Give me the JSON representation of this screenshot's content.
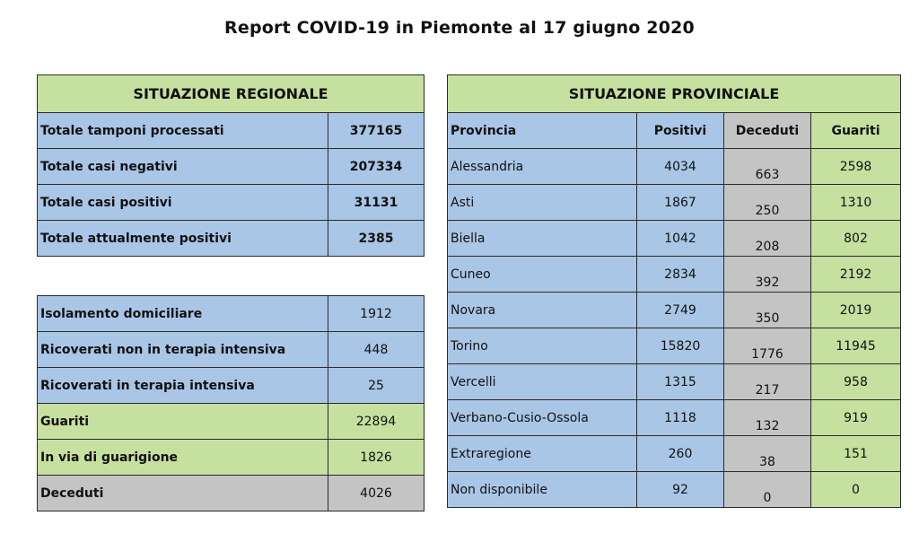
{
  "title": "Report COVID-19 in Piemonte al 17 giugno 2020",
  "regional": {
    "header": "SITUAZIONE REGIONALE",
    "rows": [
      {
        "label": "Totale tamponi processati",
        "value": "377165"
      },
      {
        "label": "Totale casi negativi",
        "value": "207334"
      },
      {
        "label": "Totale casi positivi",
        "value": "31131"
      },
      {
        "label": "Totale attualmente positivi",
        "value": "2385"
      }
    ]
  },
  "details": {
    "rows": [
      {
        "label": "Isolamento domiciliare",
        "value": "1912"
      },
      {
        "label": "Ricoverati non in terapia intensiva",
        "value": "448"
      },
      {
        "label": "Ricoverati in terapia intensiva",
        "value": "25"
      },
      {
        "label": "Guariti",
        "value": "22894"
      },
      {
        "label": "In via di guarigione",
        "value": "1826"
      },
      {
        "label": "Deceduti",
        "value": "4026"
      }
    ]
  },
  "provincial": {
    "header": "SITUAZIONE PROVINCIALE",
    "columns": [
      "Provincia",
      "Positivi",
      "Deceduti",
      "Guariti"
    ],
    "rows": [
      {
        "provincia": "Alessandria",
        "positivi": "4034",
        "deceduti": "663",
        "guariti": "2598"
      },
      {
        "provincia": "Asti",
        "positivi": "1867",
        "deceduti": "250",
        "guariti": "1310"
      },
      {
        "provincia": "Biella",
        "positivi": "1042",
        "deceduti": "208",
        "guariti": "802"
      },
      {
        "provincia": "Cuneo",
        "positivi": "2834",
        "deceduti": "392",
        "guariti": "2192"
      },
      {
        "provincia": "Novara",
        "positivi": "2749",
        "deceduti": "350",
        "guariti": "2019"
      },
      {
        "provincia": "Torino",
        "positivi": "15820",
        "deceduti": "1776",
        "guariti": "11945"
      },
      {
        "provincia": "Vercelli",
        "positivi": "1315",
        "deceduti": "217",
        "guariti": "958"
      },
      {
        "provincia": "Verbano-Cusio-Ossola",
        "positivi": "1118",
        "deceduti": "132",
        "guariti": "919"
      },
      {
        "provincia": "Extraregione",
        "positivi": "260",
        "deceduti": "38",
        "guariti": "151"
      },
      {
        "provincia": "Non disponibile",
        "positivi": "92",
        "deceduti": "0",
        "guariti": "0"
      }
    ]
  },
  "colors": {
    "blue": "#a9c6e6",
    "green": "#c6e0a0",
    "grey": "#c4c4c4"
  }
}
